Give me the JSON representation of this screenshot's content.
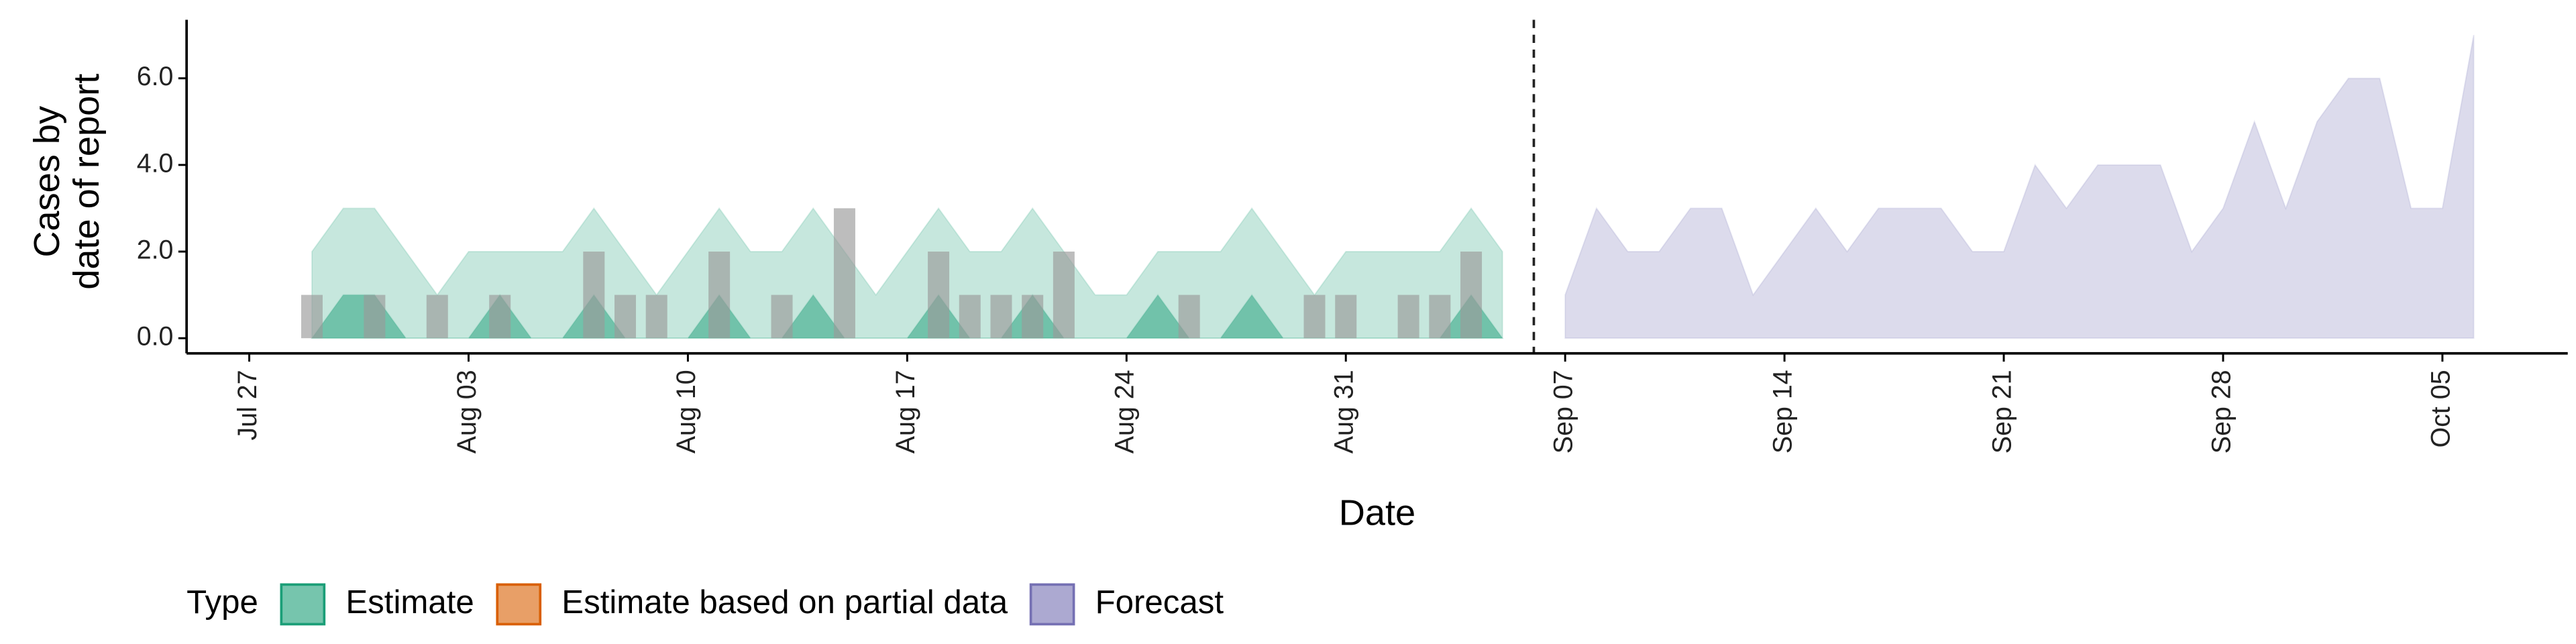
{
  "chart_data": {
    "type": "area",
    "x_label": "Date",
    "y_label": [
      "Cases by",
      "date of report"
    ],
    "legend_title": "Type",
    "xlim": [
      "Jul 25",
      "Oct 09"
    ],
    "xticks": [
      "Jul 27",
      "Aug 03",
      "Aug 10",
      "Aug 17",
      "Aug 24",
      "Aug 31",
      "Sep 07",
      "Sep 14",
      "Sep 21",
      "Sep 28",
      "Oct 05"
    ],
    "ylim": [
      -0.35,
      7.35
    ],
    "yticks": [
      {
        "value": 0,
        "label": "0.0"
      },
      {
        "value": 2,
        "label": "2.0"
      },
      {
        "value": 4,
        "label": "4.0"
      },
      {
        "value": 6,
        "label": "6.0"
      }
    ],
    "vline": "Sep 06",
    "series": [
      {
        "name": "Estimate",
        "color": "#1b9e77",
        "x": [
          "Jul 29",
          "Jul 30",
          "Jul 31",
          "Aug 01",
          "Aug 02",
          "Aug 03",
          "Aug 04",
          "Aug 05",
          "Aug 06",
          "Aug 07",
          "Aug 08",
          "Aug 09",
          "Aug 10",
          "Aug 11",
          "Aug 12",
          "Aug 13",
          "Aug 14",
          "Aug 15",
          "Aug 16",
          "Aug 17",
          "Aug 18",
          "Aug 19",
          "Aug 20",
          "Aug 21",
          "Aug 22",
          "Aug 23",
          "Aug 24",
          "Aug 25",
          "Aug 26",
          "Aug 27",
          "Aug 28",
          "Aug 29",
          "Aug 30",
          "Aug 31",
          "Sep 01",
          "Sep 02",
          "Sep 03",
          "Sep 04",
          "Sep 05"
        ],
        "values": [
          2,
          3,
          3,
          2,
          1,
          2,
          2,
          2,
          2,
          3,
          2,
          1,
          2,
          3,
          2,
          2,
          3,
          2,
          1,
          2,
          3,
          2,
          2,
          3,
          2,
          1,
          1,
          2,
          2,
          2,
          3,
          2,
          1,
          2,
          2,
          2,
          2,
          3,
          2
        ],
        "inner_values": [
          0,
          1,
          1,
          0,
          0,
          0,
          1,
          0,
          0,
          1,
          0,
          0,
          0,
          1,
          0,
          0,
          1,
          0,
          0,
          0,
          1,
          0,
          0,
          1,
          0,
          0,
          0,
          1,
          0,
          0,
          1,
          0,
          0,
          0,
          0,
          0,
          0,
          1,
          0
        ]
      },
      {
        "name": "Estimate based on partial data",
        "color": "#d95f02",
        "x": [],
        "values": []
      },
      {
        "name": "Forecast",
        "color": "#7570b3",
        "x": [
          "Sep 07",
          "Sep 08",
          "Sep 09",
          "Sep 10",
          "Sep 11",
          "Sep 12",
          "Sep 13",
          "Sep 14",
          "Sep 15",
          "Sep 16",
          "Sep 17",
          "Sep 18",
          "Sep 19",
          "Sep 20",
          "Sep 21",
          "Sep 22",
          "Sep 23",
          "Sep 24",
          "Sep 25",
          "Sep 26",
          "Sep 27",
          "Sep 28",
          "Sep 29",
          "Sep 30",
          "Oct 01",
          "Oct 02",
          "Oct 03",
          "Oct 04",
          "Oct 05",
          "Oct 06"
        ],
        "values": [
          1,
          3,
          2,
          2,
          3,
          3,
          1,
          2,
          3,
          2,
          3,
          3,
          3,
          2,
          2,
          4,
          3,
          4,
          4,
          4,
          2,
          3,
          5,
          3,
          5,
          6,
          6,
          3,
          3,
          7
        ]
      }
    ],
    "observed": {
      "color": "#999999",
      "x": [
        "Jul 29",
        "Jul 31",
        "Aug 02",
        "Aug 04",
        "Aug 07",
        "Aug 08",
        "Aug 09",
        "Aug 11",
        "Aug 13",
        "Aug 15",
        "Aug 18",
        "Aug 19",
        "Aug 20",
        "Aug 21",
        "Aug 22",
        "Aug 26",
        "Aug 30",
        "Aug 31",
        "Sep 02",
        "Sep 03",
        "Sep 04"
      ],
      "values": [
        1,
        1,
        1,
        1,
        2,
        1,
        1,
        2,
        1,
        3,
        2,
        1,
        1,
        1,
        2,
        1,
        1,
        1,
        1,
        1,
        2
      ]
    }
  }
}
